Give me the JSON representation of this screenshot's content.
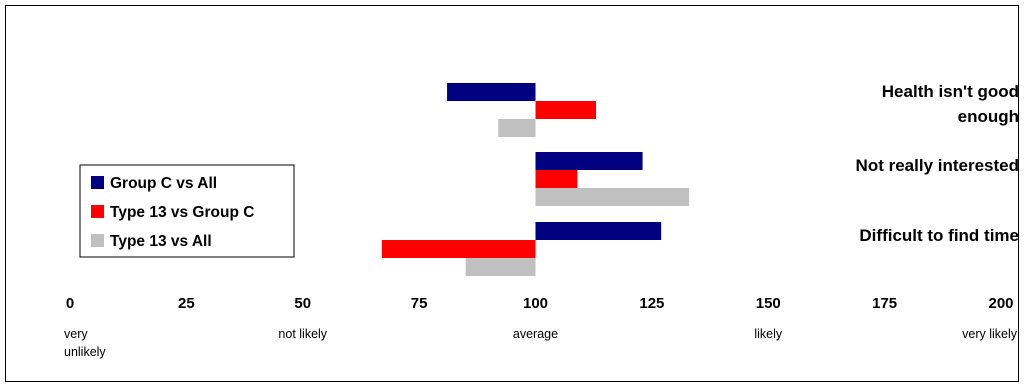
{
  "chart_data": {
    "type": "bar",
    "orientation": "horizontal",
    "baseline": 100,
    "categories": [
      [
        "Health isn't good",
        "enough"
      ],
      [
        "Not really interested"
      ],
      [
        "Difficult to find time"
      ]
    ],
    "series": [
      {
        "name": "Group C vs All",
        "color": "#000080",
        "values": [
          81,
          123,
          127
        ]
      },
      {
        "name": "Type 13 vs Group C",
        "color": "#ff0000",
        "values": [
          113,
          109,
          67
        ]
      },
      {
        "name": "Type 13 vs All",
        "color": "#c0c0c0",
        "values": [
          92,
          133,
          85
        ]
      }
    ],
    "xlim": [
      0,
      200
    ],
    "xticks": [
      "0",
      "25",
      "50",
      "75",
      "100",
      "125",
      "150",
      "175",
      "200"
    ],
    "scale_words": [
      {
        "value": 0,
        "lines": [
          "very",
          "unlikely"
        ]
      },
      {
        "value": 50,
        "lines": [
          "not likely"
        ]
      },
      {
        "value": 100,
        "lines": [
          "average"
        ]
      },
      {
        "value": 150,
        "lines": [
          "likely"
        ]
      },
      {
        "value": 200,
        "lines": [
          "very likely"
        ]
      }
    ],
    "legend_position": "left",
    "grid": false
  }
}
